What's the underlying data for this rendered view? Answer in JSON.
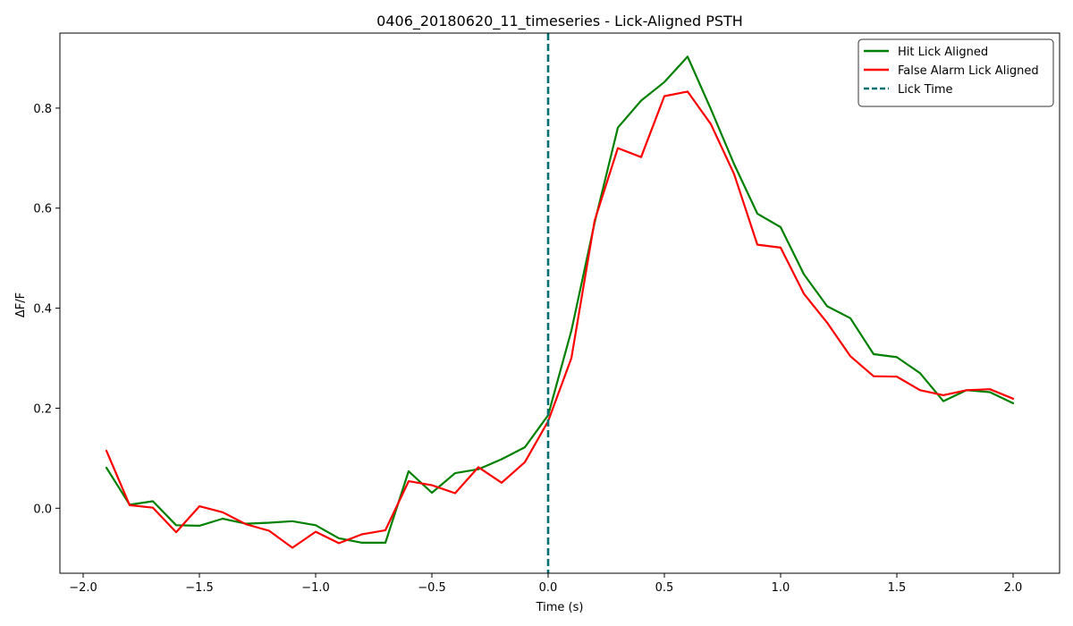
{
  "chart_data": {
    "type": "line",
    "title": "0406_20180620_11_timeseries - Lick-Aligned PSTH",
    "xlabel": "Time (s)",
    "ylabel": "ΔF/F",
    "xlim": [
      -2.1,
      2.2
    ],
    "ylim": [
      -0.13,
      0.95
    ],
    "xticks": [
      -2.0,
      -1.5,
      -1.0,
      -0.5,
      0.0,
      0.5,
      1.0,
      1.5,
      2.0
    ],
    "xtick_labels": [
      "−2.0",
      "−1.5",
      "−1.0",
      "−0.5",
      "0.0",
      "0.5",
      "1.0",
      "1.5",
      "2.0"
    ],
    "yticks": [
      0.0,
      0.2,
      0.4,
      0.6,
      0.8
    ],
    "ytick_labels": [
      "0.0",
      "0.2",
      "0.4",
      "0.6",
      "0.8"
    ],
    "grid": false,
    "legend_position": "top-right",
    "x": [
      -1.9,
      -1.8,
      -1.7,
      -1.6,
      -1.5,
      -1.4,
      -1.3,
      -1.2,
      -1.1,
      -1.0,
      -0.9,
      -0.8,
      -0.7,
      -0.6,
      -0.5,
      -0.4,
      -0.3,
      -0.2,
      -0.1,
      0.0,
      0.1,
      0.2,
      0.3,
      0.4,
      0.5,
      0.6,
      0.7,
      0.8,
      0.9,
      1.0,
      1.1,
      1.2,
      1.3,
      1.4,
      1.5,
      1.6,
      1.7,
      1.8,
      1.9,
      2.0
    ],
    "series": [
      {
        "name": "Hit Lick Aligned",
        "color": "#008000",
        "style": "solid",
        "values": [
          0.081,
          0.007,
          0.014,
          -0.034,
          -0.035,
          -0.021,
          -0.031,
          -0.029,
          -0.026,
          -0.034,
          -0.06,
          -0.069,
          -0.069,
          0.074,
          0.031,
          0.07,
          0.078,
          0.098,
          0.122,
          0.186,
          0.355,
          0.571,
          0.761,
          0.815,
          0.852,
          0.903,
          0.798,
          0.688,
          0.589,
          0.562,
          0.468,
          0.404,
          0.38,
          0.308,
          0.302,
          0.27,
          0.214,
          0.236,
          0.232,
          0.21
        ]
      },
      {
        "name": "False Alarm Lick Aligned",
        "color": "#ff0000",
        "style": "solid",
        "values": [
          0.115,
          0.006,
          0.001,
          -0.048,
          0.004,
          -0.008,
          -0.032,
          -0.045,
          -0.079,
          -0.047,
          -0.07,
          -0.052,
          -0.044,
          0.054,
          0.046,
          0.03,
          0.082,
          0.051,
          0.092,
          0.174,
          0.3,
          0.575,
          0.72,
          0.702,
          0.824,
          0.833,
          0.768,
          0.668,
          0.527,
          0.521,
          0.429,
          0.371,
          0.304,
          0.264,
          0.263,
          0.236,
          0.226,
          0.236,
          0.238,
          0.219
        ]
      }
    ],
    "vline": {
      "name": "Lick Time",
      "x": 0.0,
      "color": "#007070",
      "style": "dashed"
    }
  }
}
